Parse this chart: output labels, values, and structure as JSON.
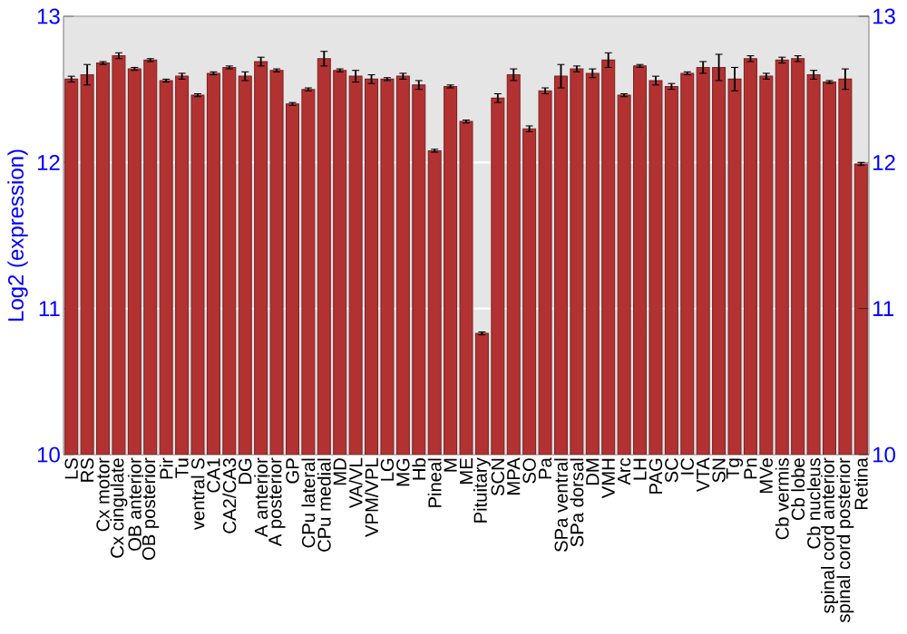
{
  "chart_data": {
    "type": "bar",
    "ylabel": "Log2 (expression)",
    "color": "#b23232",
    "categories": [
      "LS",
      "RS",
      "Cx motor",
      "Cx cingulate",
      "OB anterior",
      "OB posterior",
      "Pir",
      "Tu",
      "ventral S",
      "CA1",
      "CA2/CA3",
      "DG",
      "A anterior",
      "A posterior",
      "GP",
      "CPu lateral",
      "CPu medial",
      "MD",
      "VA/VL",
      "VPM/VPL",
      "LG",
      "MG",
      "Hb",
      "Pineal",
      "M",
      "ME",
      "Pituitary",
      "SCN",
      "MPA",
      "SO",
      "Pa",
      "SPa ventral",
      "SPa dorsal",
      "DM",
      "VMH",
      "Arc",
      "LH",
      "PAG",
      "SC",
      "IC",
      "VTA",
      "SN",
      "Tg",
      "Pn",
      "MVe",
      "Cb vermis",
      "Cb lobe",
      "Cb nucleus",
      "spinal cord anterior",
      "spinal cord posterior",
      "Retina"
    ],
    "values": [
      12.57,
      12.6,
      12.68,
      12.73,
      12.64,
      12.7,
      12.56,
      12.59,
      12.46,
      12.61,
      12.65,
      12.59,
      12.69,
      12.63,
      12.4,
      12.5,
      12.71,
      12.63,
      12.59,
      12.57,
      12.57,
      12.59,
      12.53,
      12.08,
      12.52,
      12.28,
      10.83,
      12.44,
      12.6,
      12.23,
      12.49,
      12.59,
      12.64,
      12.61,
      12.7,
      12.46,
      12.66,
      12.56,
      12.52,
      12.61,
      12.65,
      12.65,
      12.57,
      12.71,
      12.59,
      12.7,
      12.71,
      12.6,
      12.55,
      12.57,
      11.99
    ],
    "errors": [
      0.02,
      0.07,
      0.01,
      0.02,
      0.01,
      0.01,
      0.01,
      0.02,
      0.01,
      0.01,
      0.01,
      0.03,
      0.03,
      0.01,
      0.01,
      0.01,
      0.05,
      0.01,
      0.04,
      0.03,
      0.01,
      0.02,
      0.03,
      0.01,
      0.01,
      0.01,
      0.01,
      0.03,
      0.04,
      0.02,
      0.02,
      0.08,
      0.02,
      0.03,
      0.05,
      0.01,
      0.01,
      0.03,
      0.02,
      0.01,
      0.04,
      0.09,
      0.08,
      0.02,
      0.02,
      0.02,
      0.02,
      0.03,
      0.01,
      0.07,
      0.01
    ],
    "ylim": [
      10,
      13
    ],
    "yticks": [
      10,
      11,
      12,
      13
    ],
    "y2lim": [
      10,
      13
    ],
    "y2ticks": [
      10,
      11,
      12,
      13
    ],
    "grid": "y"
  }
}
